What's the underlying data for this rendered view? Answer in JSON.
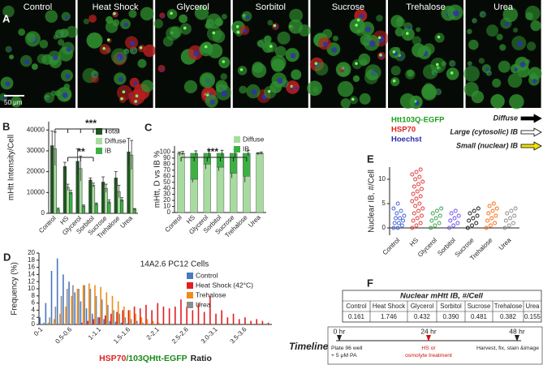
{
  "panel_a": {
    "panel_label": "A",
    "images": [
      "Control",
      "Heat Shock",
      "Glycerol",
      "Sorbitol",
      "Sucrose",
      "Trehalose",
      "Urea"
    ],
    "scale_bar": "50 μm",
    "stains": [
      {
        "name": "Htt103Q-EGFP",
        "color": "#1a9e1a"
      },
      {
        "name": "HSP70",
        "color": "#e02020"
      },
      {
        "name": "Hoechst",
        "color": "#2a2aa8"
      }
    ],
    "markers": [
      {
        "name": "Diffuse",
        "color": "#000000"
      },
      {
        "name": "Large (cytosolic) IB",
        "color": "#ffffff"
      },
      {
        "name": "Small (nuclear) IB",
        "color": "#f2e200"
      }
    ]
  },
  "chart_data": [
    {
      "type": "bar",
      "panel_label": "B",
      "ylabel": "mHtt Intensity/Cell",
      "categories": [
        "Control",
        "HS",
        "Glycerol",
        "Sorbitol",
        "Sucrose",
        "Trehalose",
        "Urea"
      ],
      "series": [
        {
          "name": "Total",
          "color": "#1e5a1e",
          "values": [
            32500,
            22500,
            25000,
            16000,
            15000,
            17000,
            29500
          ],
          "errors": [
            7000,
            2000,
            6000,
            1000,
            2500,
            3000,
            6500
          ]
        },
        {
          "name": "Diffuse",
          "color": "#a8dba0",
          "values": [
            31000,
            12500,
            21500,
            13500,
            12000,
            10500,
            28000
          ],
          "errors": [
            8000,
            1500,
            6000,
            1000,
            2000,
            3000,
            7000
          ]
        },
        {
          "name": "IB",
          "color": "#3cb043",
          "values": [
            2000,
            10000,
            3500,
            4500,
            5500,
            6500,
            2000
          ],
          "errors": [
            500,
            1000,
            500,
            500,
            1000,
            1000,
            300
          ]
        }
      ],
      "ylim": [
        0,
        44000
      ],
      "yticks": [
        0,
        10000,
        20000,
        30000,
        40000
      ],
      "annotations": [
        "***",
        "**"
      ],
      "legend": "top-right"
    },
    {
      "type": "stacked_bar",
      "panel_label": "C",
      "ylabel": "mHtt, D vs IB %",
      "categories": [
        "Control",
        "HS",
        "Glycerol",
        "Sorbitol",
        "Sucrose",
        "Trehalose",
        "Urea"
      ],
      "series": [
        {
          "name": "Diffuse",
          "color": "#a8dba0",
          "values": [
            97,
            55,
            80,
            75,
            65,
            60,
            97
          ],
          "errors": [
            3,
            5,
            8,
            6,
            8,
            10,
            2
          ]
        },
        {
          "name": "IB",
          "color": "#3cb043",
          "values": [
            1,
            43,
            18,
            23,
            33,
            38,
            1
          ],
          "errors": [
            3,
            4,
            6,
            5,
            6,
            5,
            2
          ]
        }
      ],
      "ylim": [
        0,
        110
      ],
      "yticks": [
        0,
        10,
        20,
        30,
        40,
        50,
        60,
        70,
        80,
        90,
        100
      ],
      "annotations": [
        "***"
      ],
      "legend": "top-right"
    },
    {
      "type": "bar",
      "panel_label": "D",
      "subtitle": "14A2.6 PC12 Cells",
      "ylabel": "Frequency (%)",
      "xlabel": [
        {
          "text": "HSP70",
          "color": "#e02020"
        },
        {
          "text": "/103QHtt-EGFP",
          "color": "#1a8a1a"
        },
        {
          "text": "Ratio",
          "color": "#222222"
        }
      ],
      "categories": [
        "0-1",
        null,
        null,
        null,
        null,
        "0.5-0.6",
        null,
        null,
        null,
        null,
        "1-1.1",
        null,
        null,
        null,
        null,
        "1.5-1.6",
        null,
        null,
        null,
        null,
        "2-2.1",
        null,
        null,
        null,
        null,
        "2.5-2.6",
        null,
        null,
        null,
        null,
        "3.0-3.1",
        null,
        null,
        null,
        null,
        "3.5-3.6",
        null,
        null,
        null,
        null
      ],
      "series": [
        {
          "name": "Control",
          "color": "#4a78c0",
          "values": [
            2,
            6,
            15,
            18.5,
            14,
            12,
            9,
            6.5,
            4.5,
            3,
            2,
            1.5,
            1,
            0.8,
            0.5,
            0.3,
            0.2,
            0,
            0,
            0,
            0,
            0,
            0,
            0,
            0,
            0,
            0,
            0,
            0,
            0,
            0,
            0,
            0,
            0,
            0,
            0,
            0,
            0,
            0,
            0
          ]
        },
        {
          "name": "Heat Shock (42°C)",
          "color": "#e02020",
          "values": [
            0,
            0,
            0,
            0,
            0,
            0,
            0.2,
            0.5,
            1,
            1.5,
            2,
            2.5,
            3,
            3.5,
            4,
            4,
            5,
            4.5,
            5.5,
            4,
            6,
            5,
            4.5,
            5,
            7,
            5,
            4,
            6,
            3.5,
            8,
            3,
            4,
            2,
            3,
            1.5,
            2,
            1,
            1.5,
            1,
            0.5
          ]
        },
        {
          "name": "Trehalose",
          "color": "#f08c1a",
          "values": [
            0,
            0.5,
            1.5,
            3,
            5,
            8,
            10,
            11,
            11.5,
            11,
            10.5,
            9,
            8,
            6.5,
            5,
            4,
            3,
            2,
            1.5,
            1,
            0.5,
            0,
            0,
            0,
            0,
            0,
            0,
            0,
            0,
            0,
            0,
            0,
            0,
            0,
            0,
            0,
            0,
            0,
            0,
            0
          ]
        },
        {
          "name": "Urea",
          "color": "#8c8c8c",
          "values": [
            0.5,
            2,
            5,
            8,
            10,
            11,
            10,
            11,
            10,
            8,
            7,
            5.5,
            4,
            3,
            2,
            1.5,
            1,
            0.5,
            0,
            0,
            0,
            0,
            0,
            0,
            0,
            0,
            0,
            0,
            0,
            0,
            0,
            0,
            0,
            0,
            0,
            0,
            0,
            0,
            0,
            0
          ]
        }
      ],
      "ylim": [
        0,
        20
      ],
      "yticks": [
        0,
        2,
        4,
        6,
        8,
        10,
        12,
        14,
        16,
        18,
        20
      ],
      "legend": "top-right"
    },
    {
      "type": "strip",
      "panel_label": "E",
      "ylabel": "Nuclear IB, #/Cell",
      "categories": [
        "Control",
        "HS",
        "Glycerol",
        "Sorbitol",
        "Sucrose",
        "Trehalose",
        "Urea"
      ],
      "colors": [
        "#3b5bdb",
        "#e03131",
        "#2f9e44",
        "#7048e8",
        "#111111",
        "#f76707",
        "#888888"
      ],
      "values": [
        [
          0,
          0,
          0.5,
          1,
          1,
          1.5,
          2,
          2,
          2.5,
          3,
          3.5,
          4,
          5
        ],
        [
          0,
          0.5,
          1,
          1.5,
          2,
          2.5,
          3,
          3.5,
          4,
          4.5,
          5,
          5.5,
          6,
          6.5,
          7,
          7.5,
          8,
          8.5,
          9,
          9.5,
          10,
          10.5,
          11,
          11.5,
          12
        ],
        [
          0,
          0.5,
          1,
          1.5,
          2,
          2.5,
          3,
          3.5,
          4
        ],
        [
          0,
          0.5,
          1,
          1.5,
          2,
          2.5,
          3,
          3.5
        ],
        [
          0,
          0.5,
          1,
          1.5,
          2,
          2.5,
          3,
          3.5,
          4
        ],
        [
          0,
          0.5,
          1,
          1.5,
          2,
          2.5,
          3,
          3.5,
          4,
          4.5,
          5
        ],
        [
          0,
          0.5,
          1,
          1.5,
          2,
          2.5,
          3,
          3.5,
          4
        ]
      ],
      "ylim": [
        -1.5,
        12.5
      ],
      "yticks": [
        0,
        5,
        10
      ]
    }
  ],
  "panel_f": {
    "panel_label": "F",
    "title": "Nuclear mHtt IB, #/Cell",
    "headers": [
      "Control",
      "Heat Shock",
      "Glycerol",
      "Sorbitol",
      "Sucrose",
      "Trehalose",
      "Urea"
    ],
    "values": [
      "0.161",
      "1.746",
      "0.432",
      "0.390",
      "0.481",
      "0.382",
      "0.155"
    ]
  },
  "timeline": {
    "title": "Timeline",
    "points": [
      {
        "time": "0 hr",
        "notes": [
          "Plate 96 well",
          "+ 5 μM PA"
        ],
        "note_color": "#222222"
      },
      {
        "time": "24 hr",
        "notes": [
          "HS or",
          "osmolyte treatment"
        ],
        "note_color": "#d01010"
      },
      {
        "time": "48 hr",
        "notes": [
          "Harvest, fix, stain &image"
        ],
        "note_color": "#222222"
      }
    ]
  }
}
